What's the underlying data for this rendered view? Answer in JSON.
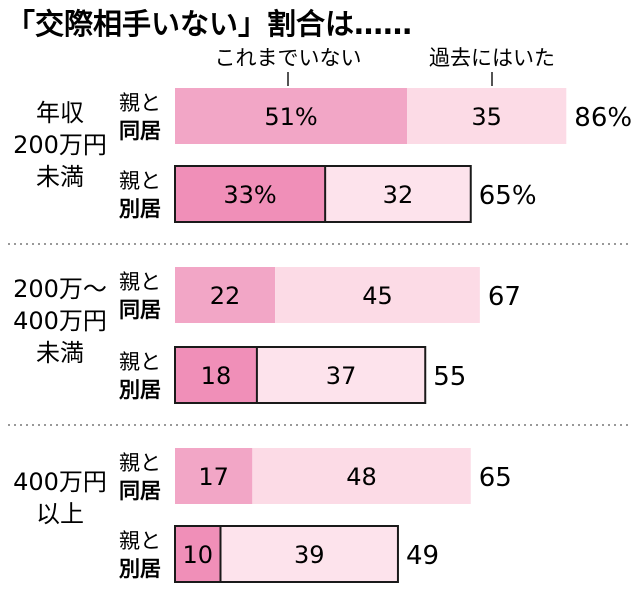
{
  "chart_data": {
    "type": "bar",
    "orientation": "horizontal",
    "stacked": true,
    "title": "「交際相手いない」割合は……",
    "legend": {
      "placement": "top",
      "entries": [
        "これまでいない",
        "過去にはいた"
      ]
    },
    "units": "%",
    "colors": {
      "never": "#f2a6c6",
      "past": "#fcdbe6",
      "never_bordered": "#f08fb8",
      "past_bordered": "#fde3ec",
      "border": "#1a1a1a",
      "divider": "#999999"
    },
    "groups": [
      {
        "label_lines": [
          "年収",
          "200万円",
          "未満"
        ],
        "rows": [
          {
            "label_top": "親と",
            "label_bottom": "同居",
            "never": 51,
            "never_text": "51%",
            "past": 35,
            "past_text": "35",
            "total": 86,
            "total_text": "86%",
            "bordered": false
          },
          {
            "label_top": "親と",
            "label_bottom": "別居",
            "never": 33,
            "never_text": "33%",
            "past": 32,
            "past_text": "32",
            "total": 65,
            "total_text": "65%",
            "bordered": true
          }
        ]
      },
      {
        "label_lines": [
          "200万〜",
          "400万円",
          "未満"
        ],
        "rows": [
          {
            "label_top": "親と",
            "label_bottom": "同居",
            "never": 22,
            "never_text": "22",
            "past": 45,
            "past_text": "45",
            "total": 67,
            "total_text": "67",
            "bordered": false
          },
          {
            "label_top": "親と",
            "label_bottom": "別居",
            "never": 18,
            "never_text": "18",
            "past": 37,
            "past_text": "37",
            "total": 55,
            "total_text": "55",
            "bordered": true
          }
        ]
      },
      {
        "label_lines": [
          "400万円",
          "以上"
        ],
        "rows": [
          {
            "label_top": "親と",
            "label_bottom": "同居",
            "never": 17,
            "never_text": "17",
            "past": 48,
            "past_text": "48",
            "total": 65,
            "total_text": "65",
            "bordered": false
          },
          {
            "label_top": "親と",
            "label_bottom": "別居",
            "never": 10,
            "never_text": "10",
            "past": 39,
            "past_text": "39",
            "total": 49,
            "total_text": "49",
            "bordered": true
          }
        ]
      }
    ]
  }
}
